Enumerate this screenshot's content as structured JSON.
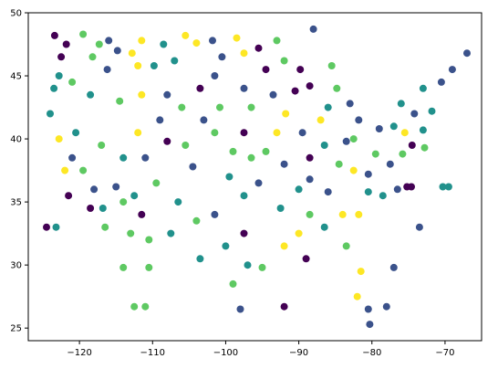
{
  "chart_data": {
    "type": "scatter",
    "title": "",
    "xlabel": "",
    "ylabel": "",
    "xlim": [
      -127,
      -65
    ],
    "ylim": [
      24,
      50
    ],
    "xticks": [
      "−120",
      "−110",
      "−100",
      "−90",
      "−80",
      "−70"
    ],
    "xtick_values": [
      -120,
      -110,
      -100,
      -90,
      -80,
      -70
    ],
    "yticks": [
      "25",
      "30",
      "35",
      "40",
      "45",
      "50"
    ],
    "ytick_values": [
      25,
      30,
      35,
      40,
      45,
      50
    ],
    "grid": false,
    "colormap": [
      "#440154",
      "#3b528b",
      "#21918c",
      "#5ec962",
      "#fde725"
    ],
    "points": [
      {
        "x": -121.8,
        "y": 47.5,
        "c": 0
      },
      {
        "x": -122.5,
        "y": 46.5,
        "c": 0
      },
      {
        "x": -123.4,
        "y": 48.2,
        "c": 0
      },
      {
        "x": -119.5,
        "y": 48.3,
        "c": 3
      },
      {
        "x": -118.2,
        "y": 46.5,
        "c": 3
      },
      {
        "x": -117.3,
        "y": 47.5,
        "c": 3
      },
      {
        "x": -116.0,
        "y": 47.8,
        "c": 1
      },
      {
        "x": -114.8,
        "y": 47.0,
        "c": 1
      },
      {
        "x": -116.2,
        "y": 45.5,
        "c": 1
      },
      {
        "x": -112.8,
        "y": 46.8,
        "c": 4
      },
      {
        "x": -111.5,
        "y": 47.8,
        "c": 4
      },
      {
        "x": -112.0,
        "y": 45.8,
        "c": 4
      },
      {
        "x": -108.5,
        "y": 47.5,
        "c": 2
      },
      {
        "x": -107.0,
        "y": 46.2,
        "c": 2
      },
      {
        "x": -109.8,
        "y": 45.8,
        "c": 2
      },
      {
        "x": -105.5,
        "y": 48.2,
        "c": 4
      },
      {
        "x": -104.0,
        "y": 47.6,
        "c": 4
      },
      {
        "x": -101.8,
        "y": 47.8,
        "c": 1
      },
      {
        "x": -100.5,
        "y": 46.5,
        "c": 1
      },
      {
        "x": -101.5,
        "y": 45.0,
        "c": 1
      },
      {
        "x": -98.5,
        "y": 48.0,
        "c": 4
      },
      {
        "x": -97.5,
        "y": 46.8,
        "c": 4
      },
      {
        "x": -95.5,
        "y": 47.2,
        "c": 0
      },
      {
        "x": -94.5,
        "y": 45.5,
        "c": 0
      },
      {
        "x": -93.0,
        "y": 47.8,
        "c": 3
      },
      {
        "x": -92.0,
        "y": 46.2,
        "c": 3
      },
      {
        "x": -89.8,
        "y": 45.5,
        "c": 0
      },
      {
        "x": -88.5,
        "y": 44.2,
        "c": 0
      },
      {
        "x": -90.5,
        "y": 43.8,
        "c": 0
      },
      {
        "x": -85.5,
        "y": 45.8,
        "c": 3
      },
      {
        "x": -84.8,
        "y": 44.0,
        "c": 3
      },
      {
        "x": -122.8,
        "y": 45.0,
        "c": 2
      },
      {
        "x": -123.5,
        "y": 44.0,
        "c": 2
      },
      {
        "x": -121.0,
        "y": 44.5,
        "c": 3
      },
      {
        "x": -118.5,
        "y": 43.5,
        "c": 2
      },
      {
        "x": -114.5,
        "y": 43.0,
        "c": 3
      },
      {
        "x": -111.5,
        "y": 43.5,
        "c": 4
      },
      {
        "x": -108.0,
        "y": 43.5,
        "c": 1
      },
      {
        "x": -106.0,
        "y": 42.5,
        "c": 3
      },
      {
        "x": -103.5,
        "y": 44.0,
        "c": 0
      },
      {
        "x": -100.8,
        "y": 42.5,
        "c": 3
      },
      {
        "x": -97.5,
        "y": 44.0,
        "c": 1
      },
      {
        "x": -96.5,
        "y": 42.5,
        "c": 3
      },
      {
        "x": -93.5,
        "y": 43.5,
        "c": 1
      },
      {
        "x": -91.8,
        "y": 42.0,
        "c": 4
      },
      {
        "x": -86.0,
        "y": 42.5,
        "c": 2
      },
      {
        "x": -83.0,
        "y": 42.8,
        "c": 1
      },
      {
        "x": -81.8,
        "y": 41.5,
        "c": 1
      },
      {
        "x": -124.0,
        "y": 42.0,
        "c": 2
      },
      {
        "x": -122.8,
        "y": 40.0,
        "c": 4
      },
      {
        "x": -121.0,
        "y": 38.5,
        "c": 1
      },
      {
        "x": -119.5,
        "y": 37.5,
        "c": 3
      },
      {
        "x": -118.0,
        "y": 36.0,
        "c": 1
      },
      {
        "x": -116.8,
        "y": 34.5,
        "c": 2
      },
      {
        "x": -121.5,
        "y": 35.5,
        "c": 0
      },
      {
        "x": -118.5,
        "y": 34.5,
        "c": 0
      },
      {
        "x": -116.5,
        "y": 33.0,
        "c": 3
      },
      {
        "x": -114.0,
        "y": 38.5,
        "c": 2
      },
      {
        "x": -112.0,
        "y": 40.5,
        "c": 4
      },
      {
        "x": -111.0,
        "y": 38.5,
        "c": 1
      },
      {
        "x": -112.5,
        "y": 35.5,
        "c": 2
      },
      {
        "x": -111.5,
        "y": 34.0,
        "c": 0
      },
      {
        "x": -110.5,
        "y": 32.0,
        "c": 3
      },
      {
        "x": -108.0,
        "y": 39.8,
        "c": 0
      },
      {
        "x": -105.5,
        "y": 39.5,
        "c": 3
      },
      {
        "x": -104.5,
        "y": 37.8,
        "c": 1
      },
      {
        "x": -106.5,
        "y": 35.0,
        "c": 2
      },
      {
        "x": -104.0,
        "y": 33.5,
        "c": 3
      },
      {
        "x": -107.5,
        "y": 32.5,
        "c": 2
      },
      {
        "x": -101.5,
        "y": 40.5,
        "c": 3
      },
      {
        "x": -99.0,
        "y": 39.0,
        "c": 3
      },
      {
        "x": -97.5,
        "y": 40.5,
        "c": 0
      },
      {
        "x": -99.5,
        "y": 37.0,
        "c": 2
      },
      {
        "x": -97.5,
        "y": 35.5,
        "c": 2
      },
      {
        "x": -95.5,
        "y": 36.5,
        "c": 1
      },
      {
        "x": -101.5,
        "y": 34.0,
        "c": 1
      },
      {
        "x": -100.0,
        "y": 31.5,
        "c": 2
      },
      {
        "x": -97.5,
        "y": 32.5,
        "c": 0
      },
      {
        "x": -97.0,
        "y": 30.0,
        "c": 2
      },
      {
        "x": -95.0,
        "y": 29.8,
        "c": 3
      },
      {
        "x": -99.0,
        "y": 28.5,
        "c": 3
      },
      {
        "x": -98.0,
        "y": 26.5,
        "c": 1
      },
      {
        "x": -103.5,
        "y": 30.5,
        "c": 2
      },
      {
        "x": -94.5,
        "y": 39.0,
        "c": 3
      },
      {
        "x": -93.0,
        "y": 40.5,
        "c": 4
      },
      {
        "x": -92.0,
        "y": 38.0,
        "c": 1
      },
      {
        "x": -89.5,
        "y": 40.5,
        "c": 1
      },
      {
        "x": -88.5,
        "y": 38.5,
        "c": 0
      },
      {
        "x": -90.0,
        "y": 36.0,
        "c": 2
      },
      {
        "x": -92.5,
        "y": 34.5,
        "c": 2
      },
      {
        "x": -92.0,
        "y": 31.5,
        "c": 4
      },
      {
        "x": -90.0,
        "y": 32.5,
        "c": 4
      },
      {
        "x": -88.5,
        "y": 34.0,
        "c": 3
      },
      {
        "x": -89.0,
        "y": 30.5,
        "c": 0
      },
      {
        "x": -86.5,
        "y": 33.0,
        "c": 2
      },
      {
        "x": -86.0,
        "y": 35.8,
        "c": 1
      },
      {
        "x": -84.5,
        "y": 38.0,
        "c": 3
      },
      {
        "x": -86.5,
        "y": 39.5,
        "c": 2
      },
      {
        "x": -83.5,
        "y": 39.8,
        "c": 1
      },
      {
        "x": -82.5,
        "y": 37.5,
        "c": 4
      },
      {
        "x": -80.5,
        "y": 37.2,
        "c": 1
      },
      {
        "x": -84.0,
        "y": 34.0,
        "c": 4
      },
      {
        "x": -81.8,
        "y": 34.0,
        "c": 4
      },
      {
        "x": -83.5,
        "y": 31.5,
        "c": 3
      },
      {
        "x": -80.5,
        "y": 35.8,
        "c": 2
      },
      {
        "x": -78.5,
        "y": 35.5,
        "c": 2
      },
      {
        "x": -77.5,
        "y": 38.0,
        "c": 1
      },
      {
        "x": -79.5,
        "y": 38.8,
        "c": 3
      },
      {
        "x": -81.5,
        "y": 29.5,
        "c": 4
      },
      {
        "x": -82.0,
        "y": 27.5,
        "c": 4
      },
      {
        "x": -80.5,
        "y": 26.5,
        "c": 1
      },
      {
        "x": -80.3,
        "y": 25.3,
        "c": 1
      },
      {
        "x": -78.0,
        "y": 26.7,
        "c": 1
      },
      {
        "x": -79.0,
        "y": 40.8,
        "c": 1
      },
      {
        "x": -77.0,
        "y": 41.0,
        "c": 2
      },
      {
        "x": -75.5,
        "y": 40.5,
        "c": 4
      },
      {
        "x": -76.0,
        "y": 42.8,
        "c": 2
      },
      {
        "x": -74.2,
        "y": 42.0,
        "c": 1
      },
      {
        "x": -73.0,
        "y": 44.0,
        "c": 2
      },
      {
        "x": -71.8,
        "y": 42.2,
        "c": 2
      },
      {
        "x": -70.5,
        "y": 44.5,
        "c": 1
      },
      {
        "x": -69.0,
        "y": 45.5,
        "c": 1
      },
      {
        "x": -74.5,
        "y": 39.5,
        "c": 0
      },
      {
        "x": -75.8,
        "y": 38.8,
        "c": 3
      },
      {
        "x": -76.5,
        "y": 36.0,
        "c": 1
      },
      {
        "x": -122.0,
        "y": 37.5,
        "c": 4
      },
      {
        "x": -120.5,
        "y": 40.5,
        "c": 2
      },
      {
        "x": -117.0,
        "y": 39.5,
        "c": 3
      },
      {
        "x": -115.0,
        "y": 36.2,
        "c": 1
      },
      {
        "x": -114.0,
        "y": 35.0,
        "c": 3
      },
      {
        "x": -113.0,
        "y": 32.5,
        "c": 3
      },
      {
        "x": -109.5,
        "y": 36.5,
        "c": 3
      },
      {
        "x": -109.0,
        "y": 41.5,
        "c": 1
      },
      {
        "x": -103.0,
        "y": 41.5,
        "c": 1
      },
      {
        "x": -96.5,
        "y": 38.5,
        "c": 3
      },
      {
        "x": -88.5,
        "y": 36.8,
        "c": 1
      },
      {
        "x": -87.0,
        "y": 41.5,
        "c": 4
      },
      {
        "x": -124.5,
        "y": 33.0,
        "c": 0
      },
      {
        "x": -123.2,
        "y": 33.0,
        "c": 2
      },
      {
        "x": -114.0,
        "y": 29.8,
        "c": 3
      },
      {
        "x": -110.5,
        "y": 29.8,
        "c": 3
      },
      {
        "x": -112.5,
        "y": 26.7,
        "c": 3
      },
      {
        "x": -111.0,
        "y": 26.7,
        "c": 3
      },
      {
        "x": -92.0,
        "y": 26.7,
        "c": 0
      },
      {
        "x": -88.0,
        "y": 48.7,
        "c": 1
      },
      {
        "x": -67.0,
        "y": 46.8,
        "c": 1
      },
      {
        "x": -73.5,
        "y": 33.0,
        "c": 1
      },
      {
        "x": -77.0,
        "y": 29.8,
        "c": 1
      },
      {
        "x": -70.3,
        "y": 36.2,
        "c": 2
      },
      {
        "x": -69.5,
        "y": 36.2,
        "c": 2
      },
      {
        "x": -75.2,
        "y": 36.2,
        "c": 0
      },
      {
        "x": -74.6,
        "y": 36.2,
        "c": 0
      },
      {
        "x": -72.8,
        "y": 39.3,
        "c": 3
      },
      {
        "x": -73.0,
        "y": 40.7,
        "c": 2
      },
      {
        "x": -82.5,
        "y": 40.0,
        "c": 3
      }
    ]
  }
}
